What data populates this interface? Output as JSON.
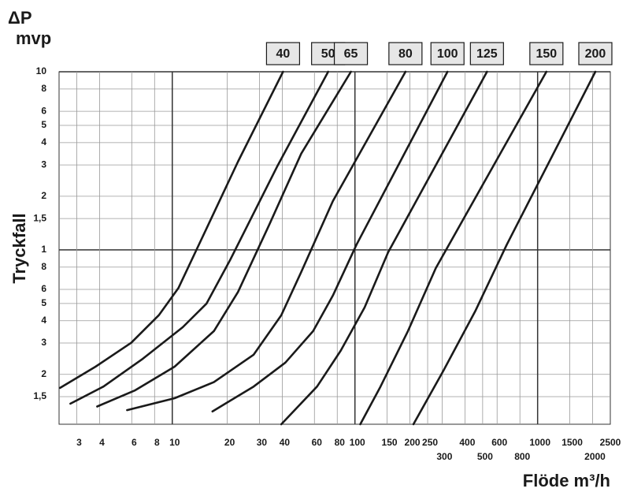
{
  "chart_data": {
    "type": "line",
    "title": "ΔP",
    "subtitle": "mvp",
    "y_label": "Tryckfall",
    "x_label": "Flöde m³/h",
    "xscale": "log",
    "yscale": "log",
    "grid": true,
    "color": "#1a1a1a",
    "xlim": [
      2.4,
      2500
    ],
    "ylim": [
      0.105,
      10
    ],
    "xticks": [
      3,
      4,
      6,
      8,
      10,
      20,
      30,
      40,
      60,
      80,
      100,
      150,
      200,
      250,
      300,
      400,
      500,
      600,
      800,
      1000,
      1500,
      2000,
      2500
    ],
    "yticks": [
      10,
      8,
      6,
      5,
      4,
      3,
      2,
      {
        "value": 1.5,
        "label": "1,5"
      },
      1,
      {
        "value": 0.8,
        "label": "8"
      },
      {
        "value": 0.6,
        "label": "6"
      },
      {
        "value": 0.5,
        "label": "5"
      },
      {
        "value": 0.4,
        "label": "4"
      },
      {
        "value": 0.3,
        "label": "3"
      },
      {
        "value": 0.2,
        "label": "2"
      },
      {
        "value": 0.15,
        "label": "1,5"
      }
    ],
    "series": [
      {
        "name": "40",
        "x": [
          2.43,
          3.8,
          5.96,
          8.44,
          10.8,
          15.4,
          22.9,
          40.4
        ],
        "values": [
          0.168,
          0.221,
          0.301,
          0.43,
          0.61,
          1.32,
          3.13,
          10
        ]
      },
      {
        "name": "50",
        "x": [
          2.77,
          4.2,
          6.9,
          11.4,
          15.4,
          20.7,
          37.7,
          71.3
        ],
        "values": [
          0.137,
          0.171,
          0.245,
          0.368,
          0.5,
          0.876,
          2.97,
          10
        ]
      },
      {
        "name": "65",
        "x": [
          3.88,
          6.27,
          10.3,
          16.9,
          22.9,
          34,
          50.8,
          95
        ],
        "values": [
          0.132,
          0.163,
          0.221,
          0.35,
          0.58,
          1.39,
          3.47,
          10
        ]
      },
      {
        "name": "80",
        "x": [
          5.66,
          10.3,
          16.9,
          27.9,
          39.5,
          50.8,
          75.7,
          189
        ],
        "values": [
          0.126,
          0.147,
          0.181,
          0.258,
          0.43,
          0.752,
          1.88,
          10
        ]
      },
      {
        "name": "100",
        "x": [
          16.6,
          27.9,
          41.6,
          59,
          75.7,
          102,
          321
        ],
        "values": [
          0.124,
          0.171,
          0.233,
          0.35,
          0.554,
          1.07,
          10
        ]
      },
      {
        "name": "125",
        "x": [
          39.5,
          62,
          83.6,
          113,
          152,
          528
        ],
        "values": [
          0.105,
          0.171,
          0.272,
          0.475,
          0.97,
          10
        ]
      },
      {
        "name": "150",
        "x": [
          107,
          138,
          195,
          277,
          1117
        ],
        "values": [
          0.105,
          0.171,
          0.35,
          0.79,
          10
        ]
      },
      {
        "name": "200",
        "x": [
          209,
          305,
          455,
          678,
          2070
        ],
        "values": [
          0.105,
          0.21,
          0.452,
          1.07,
          10
        ]
      }
    ]
  }
}
